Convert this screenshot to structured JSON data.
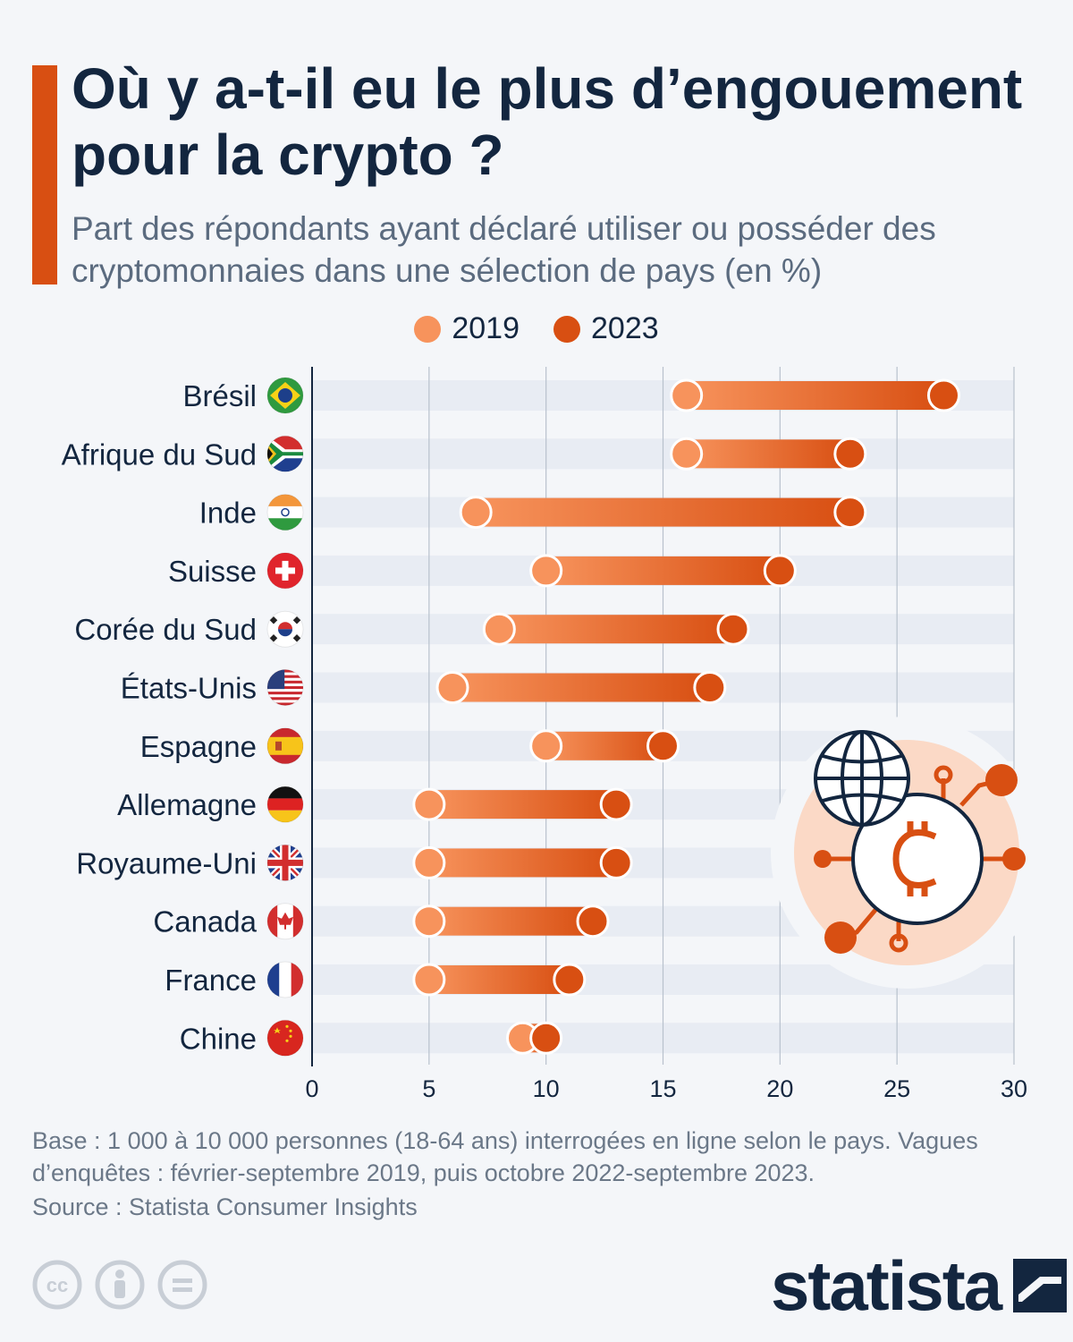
{
  "title": "Où y a-t-il eu le plus d’engouement pour la crypto ?",
  "subtitle": "Part des répondants ayant déclaré utiliser ou posséder des cryptomonnaies dans une sélection de pays (en %)",
  "legend": [
    {
      "label": "2019",
      "color": "#f7935c"
    },
    {
      "label": "2023",
      "color": "#d84f12"
    }
  ],
  "chart_data": {
    "type": "dumbbell",
    "xlim": [
      0,
      30
    ],
    "xticks": [
      "0",
      "5",
      "10",
      "15",
      "20",
      "25",
      "30"
    ],
    "grid": true,
    "legend_position": "top",
    "series_names": [
      "2019",
      "2023"
    ],
    "categories": [
      {
        "name": "Brésil",
        "flag": "brazil-flag",
        "v2019": 16,
        "v2023": 27
      },
      {
        "name": "Afrique du Sud",
        "flag": "south-africa-flag",
        "v2019": 16,
        "v2023": 23
      },
      {
        "name": "Inde",
        "flag": "india-flag",
        "v2019": 7,
        "v2023": 23
      },
      {
        "name": "Suisse",
        "flag": "switzerland-flag",
        "v2019": 10,
        "v2023": 20
      },
      {
        "name": "Corée du Sud",
        "flag": "south-korea-flag",
        "v2019": 8,
        "v2023": 18
      },
      {
        "name": "États-Unis",
        "flag": "usa-flag",
        "v2019": 6,
        "v2023": 17
      },
      {
        "name": "Espagne",
        "flag": "spain-flag",
        "v2019": 10,
        "v2023": 15
      },
      {
        "name": "Allemagne",
        "flag": "germany-flag",
        "v2019": 5,
        "v2023": 13
      },
      {
        "name": "Royaume-Uni",
        "flag": "uk-flag",
        "v2019": 5,
        "v2023": 13
      },
      {
        "name": "Canada",
        "flag": "canada-flag",
        "v2019": 5,
        "v2023": 12
      },
      {
        "name": "France",
        "flag": "france-flag",
        "v2019": 5,
        "v2023": 11
      },
      {
        "name": "Chine",
        "flag": "china-flag",
        "v2019": 9,
        "v2023": 10
      }
    ]
  },
  "footnote": "Base : 1 000 à 10 000 personnes (18-64 ans) interrogées en ligne selon le pays. Vagues d’enquêtes : février-septembre 2019, puis octobre 2022-septembre 2023.",
  "source": "Source : Statista Consumer Insights",
  "brand": "statista",
  "license_icons": [
    "creative-commons-icon",
    "attribution-icon",
    "no-derivatives-icon"
  ],
  "illustration": [
    "globe-icon",
    "bitcoin-icon"
  ]
}
